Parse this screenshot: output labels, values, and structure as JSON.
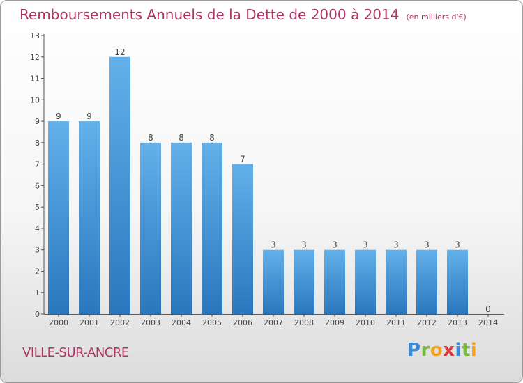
{
  "chart_data": {
    "type": "bar",
    "title": "Remboursements Annuels de la Dette de 2000 à 2014",
    "unit": "(en milliers d'€)",
    "categories": [
      "2000",
      "2001",
      "2002",
      "2003",
      "2004",
      "2005",
      "2006",
      "2007",
      "2008",
      "2009",
      "2010",
      "2011",
      "2012",
      "2013",
      "2014"
    ],
    "values": [
      9,
      9,
      12,
      8,
      8,
      8,
      7,
      3,
      3,
      3,
      3,
      3,
      3,
      3,
      0
    ],
    "ylim": [
      0,
      13
    ],
    "yticks": [
      "0",
      "1",
      "2",
      "3",
      "4",
      "5",
      "6",
      "7",
      "8",
      "9",
      "10",
      "11",
      "12",
      "13"
    ],
    "grid": false,
    "bar_color": "#5aa8e6",
    "bar_color_dark": "#2b78bf"
  },
  "commune": "VILLE-SUR-ANCRE",
  "logo": {
    "p": "P",
    "r": "r",
    "o": "o",
    "x": "x",
    "i1": "i",
    "t": "t",
    "i2": "i"
  }
}
